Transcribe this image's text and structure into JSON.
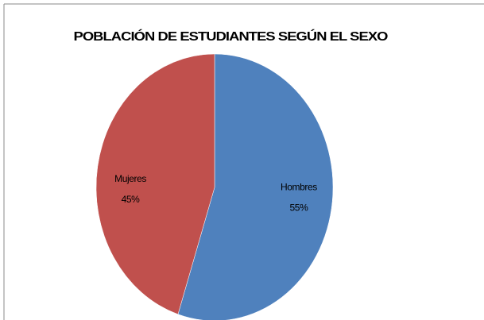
{
  "chart_data": {
    "type": "pie",
    "title": "POBLACIÓN DE ESTUDIANTES SEGÚN EL SEXO",
    "categories": [
      "Hombres",
      "Mujeres"
    ],
    "values": [
      55,
      45
    ],
    "value_labels": [
      "55%",
      "45%"
    ],
    "colors": [
      "#4f81bd",
      "#c0504d"
    ]
  }
}
